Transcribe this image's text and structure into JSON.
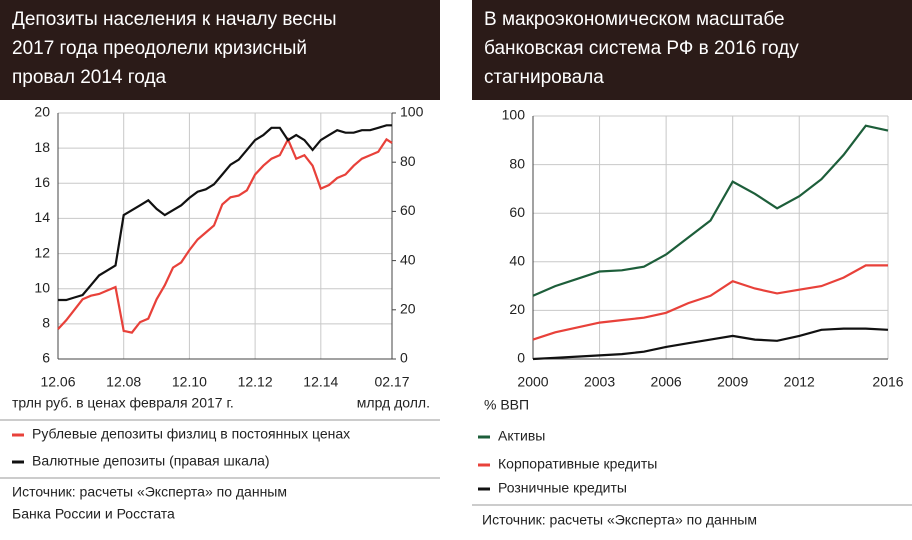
{
  "chart_data": [
    {
      "type": "line",
      "title_lines": [
        "Депозиты населения к началу весны",
        "2017 года преодолели кризисный",
        "провал 2014 года"
      ],
      "ylabel": "трлн руб. в ценах февраля 2017 г.",
      "y2label": "млрд долл.",
      "source_lines": [
        "Источник: расчеты «Эксперта» по данным",
        "Банка России и Росстата"
      ],
      "x": [
        "12.06",
        "03.07",
        "06.07",
        "09.07",
        "12.07",
        "03.08",
        "06.08",
        "09.08",
        "12.08",
        "03.09",
        "06.09",
        "09.09",
        "12.09",
        "03.10",
        "06.10",
        "09.10",
        "12.10",
        "03.11",
        "06.11",
        "09.11",
        "12.11",
        "03.12",
        "06.12",
        "09.12",
        "12.12",
        "03.13",
        "06.13",
        "09.13",
        "12.13",
        "03.14",
        "06.14",
        "09.14",
        "12.14",
        "03.15",
        "06.15",
        "09.15",
        "12.15",
        "03.16",
        "06.16",
        "09.16",
        "12.16",
        "02.17"
      ],
      "xlim": [
        "12.06",
        "02.17"
      ],
      "xticks": [
        "12.06",
        "12.08",
        "12.10",
        "12.12",
        "12.14",
        "02.17"
      ],
      "ylim": [
        6,
        20
      ],
      "yticks": [
        6,
        8,
        10,
        12,
        14,
        16,
        18,
        20
      ],
      "y2lim": [
        0,
        100
      ],
      "y2ticks": [
        0,
        20,
        40,
        60,
        80,
        100
      ],
      "grid": true,
      "series": [
        {
          "name": "Рублевые депозиты физлиц в постоянных ценах",
          "color": "#e8413a",
          "values": [
            7.7,
            8.2,
            8.8,
            9.4,
            9.6,
            9.7,
            9.9,
            10.1,
            7.6,
            7.5,
            8.1,
            8.3,
            9.4,
            10.2,
            11.2,
            11.5,
            12.2,
            12.8,
            13.2,
            13.6,
            14.8,
            15.2,
            15.3,
            15.6,
            16.5,
            17.0,
            17.4,
            17.6,
            18.5,
            17.4,
            17.6,
            17.0,
            15.7,
            15.9,
            16.3,
            16.5,
            17.0,
            17.4,
            17.6,
            17.8,
            18.5,
            18.3
          ]
        },
        {
          "name": "Валютные депозиты (правая шкала)",
          "color": "#111111",
          "axis": "y2",
          "values": [
            24,
            24,
            25,
            26,
            30,
            34,
            36,
            38,
            58.5,
            60.5,
            62.5,
            64.5,
            61,
            58.5,
            60.5,
            62.5,
            65.5,
            68,
            69,
            71,
            75,
            79,
            81,
            85,
            89,
            91,
            94,
            94,
            89,
            91,
            89,
            85,
            89,
            91,
            93,
            92,
            92,
            93,
            93,
            94,
            95,
            95
          ]
        }
      ]
    },
    {
      "type": "line",
      "title_lines": [
        "В макроэкономическом масштабе",
        "банковская система РФ в 2016 году",
        "стагнировала"
      ],
      "ylabel": "% ВВП",
      "source_lines": [
        "Источник: расчеты «Эксперта» по данным"
      ],
      "x": [
        2000,
        2001,
        2002,
        2003,
        2004,
        2005,
        2006,
        2007,
        2008,
        2009,
        2010,
        2011,
        2012,
        2013,
        2014,
        2015,
        2016
      ],
      "xlim": [
        2000,
        2016
      ],
      "xticks": [
        2000,
        2003,
        2006,
        2009,
        2012,
        2016
      ],
      "ylim": [
        0,
        100
      ],
      "yticks": [
        0,
        20,
        40,
        60,
        80,
        100
      ],
      "grid": true,
      "series": [
        {
          "name": "Активы",
          "color": "#1d5e3a",
          "values": [
            26,
            30,
            33,
            36,
            36.5,
            38,
            43,
            50,
            57,
            73,
            68,
            62,
            67,
            74,
            84,
            96,
            94
          ]
        },
        {
          "name": "Корпоративные кредиты",
          "color": "#e8413a",
          "values": [
            8,
            11,
            13,
            15,
            16,
            17,
            19,
            23,
            26,
            32,
            29,
            27,
            28.5,
            30,
            33.5,
            38.5,
            38.5
          ]
        },
        {
          "name": "Розничные кредиты",
          "color": "#111111",
          "values": [
            0,
            0.5,
            1,
            1.5,
            2,
            3,
            5,
            6.5,
            8,
            9.5,
            8,
            7.5,
            9.5,
            12,
            12.5,
            12.5,
            12
          ]
        }
      ]
    }
  ]
}
